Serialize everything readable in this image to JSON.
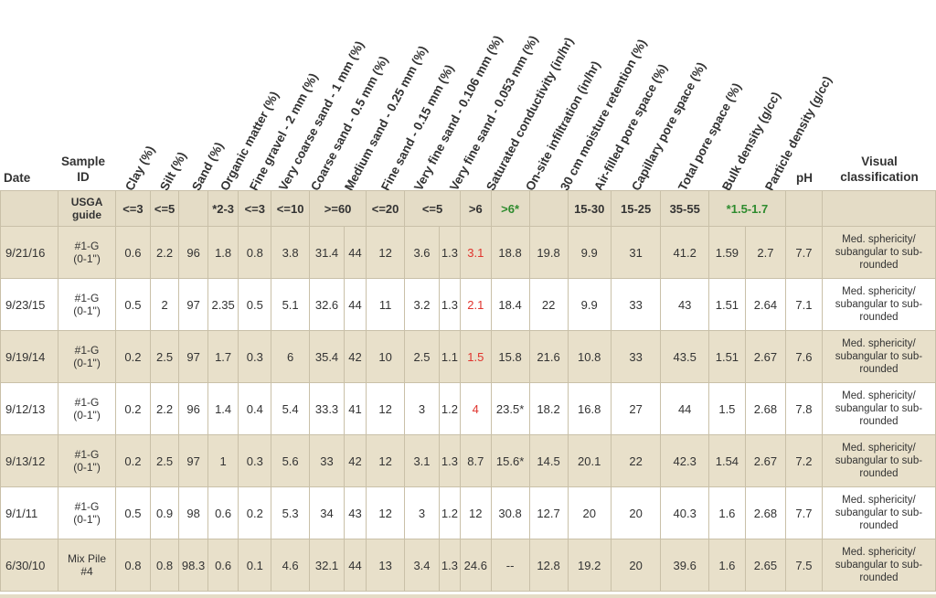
{
  "header": {
    "date": "Date",
    "sample_id": "Sample ID",
    "ph": "pH",
    "visual": "Visual classification",
    "rotated": [
      "Clay (%)",
      "Silt (%)",
      "Sand (%)",
      "Organic matter (%)",
      "Fine gravel - 2 mm (%)",
      "Very coarse sand - 1 mm (%)",
      "Coarse sand - 0.5 mm (%)",
      "Medium sand - 0.25 mm (%)",
      "Fine sand - 0.15 mm (%)",
      "Very fine sand - 0.106 mm (%)",
      "Very fine sand - 0.053 mm (%)",
      "Saturated conductivity (in/hr)",
      "On-site infiltration (in/hr)",
      "30 cm moisture retention (%)",
      "Air-filled pore space (%)",
      "Capillary pore space (%)",
      "Total pore space (%)",
      "Bulk density (g/cc)",
      "Particle density (g/cc)"
    ]
  },
  "guide": {
    "label": "USGA guide",
    "clay": "<=3",
    "silt": "<=5",
    "organic": "*2-3",
    "fine_gravel": "<=3",
    "very_coarse": "<=10",
    "coarse_medium": ">=60",
    "fine_sand": "<=20",
    "very_fine": "<=5",
    "sat_cond": ">6",
    "infiltration": ">6*",
    "air_filled": "15-30",
    "capillary": "15-25",
    "total_pore": "35-55",
    "bulk_density": "*1.5-1.7"
  },
  "rows": [
    {
      "date": "9/21/16",
      "sid1": "#1-G",
      "sid2": "(0-1\")",
      "clay": "0.6",
      "silt": "2.2",
      "sand": "96",
      "om": "1.8",
      "fg": "0.8",
      "vcs": "3.8",
      "cs": "31.4",
      "ms": "44",
      "fs": "12",
      "vfs1": "3.6",
      "vfs2": "1.3",
      "sc": "3.1",
      "inf": "18.8",
      "mr": "19.8",
      "afp": "9.9",
      "cps": "31",
      "tps": "41.2",
      "bd": "1.59",
      "pd": "2.7",
      "ph": "7.7",
      "vis": "Med. sphericity/ subangular to sub-rounded"
    },
    {
      "date": "9/23/15",
      "sid1": "#1-G",
      "sid2": "(0-1\")",
      "clay": "0.5",
      "silt": "2",
      "sand": "97",
      "om": "2.35",
      "fg": "0.5",
      "vcs": "5.1",
      "cs": "32.6",
      "ms": "44",
      "fs": "11",
      "vfs1": "3.2",
      "vfs2": "1.3",
      "sc": "2.1",
      "inf": "18.4",
      "mr": "22",
      "afp": "9.9",
      "cps": "33",
      "tps": "43",
      "bd": "1.51",
      "pd": "2.64",
      "ph": "7.1",
      "vis": "Med. sphericity/ subangular to sub-rounded"
    },
    {
      "date": "9/19/14",
      "sid1": "#1-G",
      "sid2": "(0-1\")",
      "clay": "0.2",
      "silt": "2.5",
      "sand": "97",
      "om": "1.7",
      "fg": "0.3",
      "vcs": "6",
      "cs": "35.4",
      "ms": "42",
      "fs": "10",
      "vfs1": "2.5",
      "vfs2": "1.1",
      "sc": "1.5",
      "inf": "15.8",
      "mr": "21.6",
      "afp": "10.8",
      "cps": "33",
      "tps": "43.5",
      "bd": "1.51",
      "pd": "2.67",
      "ph": "7.6",
      "vis": "Med. sphericity/ subangular to sub-rounded"
    },
    {
      "date": "9/12/13",
      "sid1": "#1-G",
      "sid2": "(0-1\")",
      "clay": "0.2",
      "silt": "2.2",
      "sand": "96",
      "om": "1.4",
      "fg": "0.4",
      "vcs": "5.4",
      "cs": "33.3",
      "ms": "41",
      "fs": "12",
      "vfs1": "3",
      "vfs2": "1.2",
      "sc": "4",
      "inf": "23.5*",
      "mr": "18.2",
      "afp": "16.8",
      "cps": "27",
      "tps": "44",
      "bd": "1.5",
      "pd": "2.68",
      "ph": "7.8",
      "vis": "Med. sphericity/ subangular to sub-rounded"
    },
    {
      "date": "9/13/12",
      "sid1": "#1-G",
      "sid2": "(0-1\")",
      "clay": "0.2",
      "silt": "2.5",
      "sand": "97",
      "om": "1",
      "fg": "0.3",
      "vcs": "5.6",
      "cs": "33",
      "ms": "42",
      "fs": "12",
      "vfs1": "3.1",
      "vfs2": "1.3",
      "sc": "8.7",
      "inf": "15.6*",
      "mr": "14.5",
      "afp": "20.1",
      "cps": "22",
      "tps": "42.3",
      "bd": "1.54",
      "pd": "2.67",
      "ph": "7.2",
      "vis": "Med. sphericity/ subangular to sub-rounded"
    },
    {
      "date": "9/1/11",
      "sid1": "#1-G",
      "sid2": "(0-1\")",
      "clay": "0.5",
      "silt": "0.9",
      "sand": "98",
      "om": "0.6",
      "fg": "0.2",
      "vcs": "5.3",
      "cs": "34",
      "ms": "43",
      "fs": "12",
      "vfs1": "3",
      "vfs2": "1.2",
      "sc": "12",
      "inf": "30.8",
      "mr": "12.7",
      "afp": "20",
      "cps": "20",
      "tps": "40.3",
      "bd": "1.6",
      "pd": "2.68",
      "ph": "7.7",
      "vis": "Med. sphericity/ subangular to sub-rounded"
    },
    {
      "date": "6/30/10",
      "sid1": "Mix Pile",
      "sid2": "#4",
      "clay": "0.8",
      "silt": "0.8",
      "sand": "98.3",
      "om": "0.6",
      "fg": "0.1",
      "vcs": "4.6",
      "cs": "32.1",
      "ms": "44",
      "fs": "13",
      "vfs1": "3.4",
      "vfs2": "1.3",
      "sc": "24.6",
      "inf": "--",
      "mr": "12.8",
      "afp": "19.2",
      "cps": "20",
      "tps": "39.6",
      "bd": "1.6",
      "pd": "2.65",
      "ph": "7.5",
      "vis": "Med. sphericity/ subangular to sub-rounded"
    }
  ],
  "colors": {
    "highlight_red": "#e0332d",
    "guide_green": "#2e8b2e",
    "band": "#e8e0ca"
  }
}
